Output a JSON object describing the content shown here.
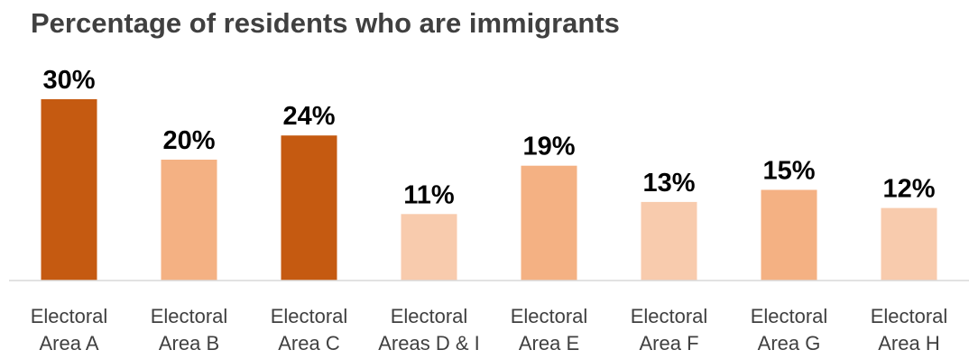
{
  "chart_data": {
    "type": "bar",
    "title": "Percentage of residents who are immigrants",
    "xlabel": "",
    "ylabel": "",
    "categories": [
      [
        "Electoral",
        "Area A"
      ],
      [
        "Electoral",
        "Area B"
      ],
      [
        "Electoral",
        "Area C"
      ],
      [
        "Electoral",
        "Areas D & I"
      ],
      [
        "Electoral",
        "Area E"
      ],
      [
        "Electoral",
        "Area F"
      ],
      [
        "Electoral",
        "Area G"
      ],
      [
        "Electoral",
        "Area H"
      ]
    ],
    "values": [
      30,
      20,
      24,
      11,
      19,
      13,
      15,
      12
    ],
    "value_labels": [
      "30%",
      "20%",
      "24%",
      "11%",
      "19%",
      "13%",
      "15%",
      "12%"
    ],
    "bar_colors": [
      "#C55A11",
      "#F4B183",
      "#C55A11",
      "#F8CBAD",
      "#F4B183",
      "#F8CBAD",
      "#F4B183",
      "#F8CBAD"
    ],
    "ylim": [
      0,
      30
    ],
    "grid": false,
    "legend": "none",
    "axis_color": "#D9D9D9"
  }
}
